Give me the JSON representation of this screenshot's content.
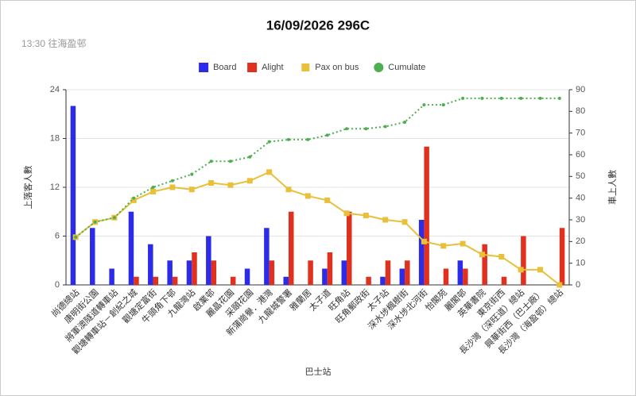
{
  "chart_data": {
    "type": "bar",
    "title": "16/09/2026 296C",
    "subtitle": "13:30 往海盈邨",
    "x_label": "巴士站",
    "y_label": "上落客人數",
    "y2_label": "車上人數",
    "legend": "top",
    "grid": true,
    "categories": [
      "尚德總站",
      "唐明街公園",
      "將軍澳隧道轉車站",
      "觀塘轉車站－創紀之城",
      "觀塘定富街",
      "牛頭角下邨",
      "九龍灣站",
      "啟業邨",
      "麗晶花園",
      "采頤花園",
      "新蒲崗譽．港灣",
      "九龍城警署",
      "雅蘭居",
      "太子道",
      "旺角站",
      "旺角郵政街",
      "太子站",
      "深水埗楓樹街",
      "深水埗北河街",
      "怡閣苑",
      "麗閣邨",
      "英華書院",
      "東京街西",
      "長沙灣（深旺道）總站",
      "興華街西（巴士廠）",
      "長沙灣（海盈邨）總站"
    ],
    "series": [
      {
        "name": "Board",
        "type": "bar",
        "color": "#2b2be8",
        "values": [
          22,
          7,
          2,
          9,
          5,
          3,
          3,
          6,
          0,
          2,
          7,
          1,
          0,
          2,
          3,
          0,
          1,
          2,
          8,
          0,
          3,
          0,
          0,
          0,
          0,
          0
        ]
      },
      {
        "name": "Alight",
        "type": "bar",
        "color": "#e0301e",
        "values": [
          0,
          0,
          0,
          1,
          1,
          1,
          4,
          3,
          1,
          0,
          3,
          9,
          3,
          4,
          9,
          1,
          3,
          3,
          17,
          2,
          2,
          5,
          1,
          6,
          0,
          7
        ]
      },
      {
        "name": "Pax on bus",
        "type": "line",
        "axis": "y2",
        "color": "#e8c03a",
        "marker": "square",
        "values": [
          22,
          29,
          31,
          39,
          43,
          45,
          44,
          47,
          46,
          48,
          52,
          44,
          41,
          39,
          33,
          32,
          30,
          29,
          20,
          18,
          19,
          14,
          13,
          7,
          7,
          0
        ]
      },
      {
        "name": "Cumulate",
        "type": "line",
        "axis": "y2",
        "color": "#4caf50",
        "marker": "circle",
        "dashed": true,
        "values": [
          22,
          29,
          31,
          40,
          45,
          48,
          51,
          57,
          57,
          59,
          66,
          67,
          67,
          69,
          72,
          72,
          73,
          75,
          83,
          83,
          86,
          86,
          86,
          86,
          86,
          86
        ]
      }
    ],
    "ylim": [
      0,
      24
    ],
    "yticks": [
      0,
      6,
      12,
      18,
      24
    ],
    "y2lim": [
      0,
      90
    ],
    "y2ticks": [
      0,
      10,
      20,
      30,
      40,
      50,
      60,
      70,
      80,
      90
    ]
  }
}
